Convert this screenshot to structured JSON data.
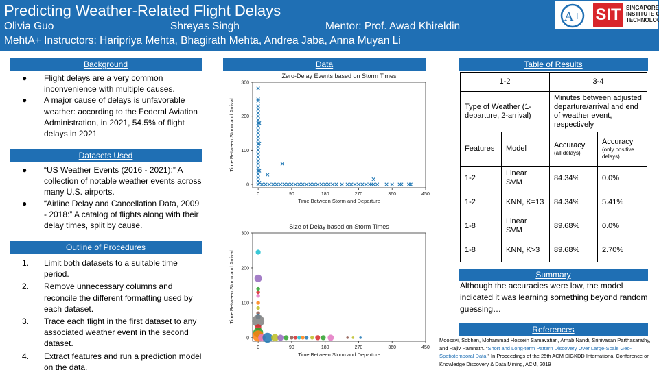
{
  "header": {
    "title": "Predicting Weather-Related Flight Delays",
    "authors": [
      "Olivia Guo",
      "Shreyas Singh"
    ],
    "mentor": "Mentor: Prof. Awad Khireldin",
    "instructors": "MehtA+ Instructors: Haripriya Mehta, Bhagirath Mehta, Andrea Jaba, Anna Muyan Li",
    "logos": {
      "mehta": "A+",
      "sit_mark": "SIT",
      "sit_lines": [
        "SINGAPORE",
        "INSTITUTE OF",
        "TECHNOLOGY"
      ]
    },
    "colors": {
      "banner": "#1f6fb4",
      "sit_red": "#d9262b"
    }
  },
  "background": {
    "heading": "Background",
    "bullets": [
      "Flight delays are a very common inconvenience with multiple causes.",
      "A major cause of delays is unfavorable weather: according to the Federal Aviation Administration, in 2021, 54.5% of flight delays in 2021"
    ]
  },
  "datasets": {
    "heading": "Datasets Used",
    "bullets": [
      "“US Weather Events (2016 - 2021):” A collection of notable weather events across many U.S. airports.",
      "“Airline Delay and Cancellation Data, 2009 - 2018:” A catalog of flights along with their delay times, split by cause."
    ]
  },
  "procedures": {
    "heading": "Outline of Procedures",
    "steps": [
      {
        "num": "1.",
        "text": "Limit both datasets to a suitable time period."
      },
      {
        "num": "2.",
        "text": "Remove unnecessary columns and reconcile the different formatting used by each dataset."
      },
      {
        "num": "3.",
        "text": "Trace each flight in the first dataset to any associated weather event in the second dataset."
      },
      {
        "num": "4.",
        "text": "Extract features and run a prediction model on the data."
      }
    ]
  },
  "data_section": {
    "heading": "Data"
  },
  "chart_data": [
    {
      "type": "scatter",
      "title": "Zero-Delay Events based on Storm Times",
      "xlabel": "Time Between Storm and Departure",
      "ylabel": "Time Between Storm and Arrival",
      "xlim": [
        -15,
        450
      ],
      "ylim": [
        -10,
        300
      ],
      "xticks": [
        0,
        90,
        180,
        270,
        360,
        450
      ],
      "yticks": [
        0,
        100,
        200,
        300
      ],
      "marker": "x",
      "color": "#1f77b4",
      "series": [
        {
          "points": [
            [
              0,
              0
            ],
            [
              0,
              10
            ],
            [
              0,
              20
            ],
            [
              0,
              30
            ],
            [
              0,
              40
            ],
            [
              0,
              50
            ],
            [
              0,
              60
            ],
            [
              0,
              70
            ],
            [
              0,
              80
            ],
            [
              0,
              90
            ],
            [
              0,
              100
            ],
            [
              0,
              110
            ],
            [
              0,
              120
            ],
            [
              0,
              130
            ],
            [
              0,
              140
            ],
            [
              0,
              150
            ],
            [
              0,
              160
            ],
            [
              0,
              170
            ],
            [
              0,
              180
            ],
            [
              0,
              190
            ],
            [
              0,
              200
            ],
            [
              0,
              210
            ],
            [
              0,
              220
            ],
            [
              0,
              230
            ],
            [
              0,
              245
            ],
            [
              0,
              250
            ],
            [
              0,
              282
            ],
            [
              3,
              5
            ],
            [
              3,
              40
            ],
            [
              3,
              120
            ],
            [
              3,
              180
            ],
            [
              10,
              0
            ],
            [
              20,
              0
            ],
            [
              30,
              0
            ],
            [
              40,
              0
            ],
            [
              50,
              0
            ],
            [
              60,
              0
            ],
            [
              70,
              0
            ],
            [
              80,
              0
            ],
            [
              90,
              0
            ],
            [
              100,
              0
            ],
            [
              110,
              0
            ],
            [
              120,
              0
            ],
            [
              130,
              0
            ],
            [
              140,
              0
            ],
            [
              150,
              0
            ],
            [
              160,
              0
            ],
            [
              170,
              0
            ],
            [
              180,
              0
            ],
            [
              190,
              0
            ],
            [
              200,
              0
            ],
            [
              210,
              0
            ],
            [
              225,
              0
            ],
            [
              240,
              0
            ],
            [
              250,
              0
            ],
            [
              260,
              0
            ],
            [
              270,
              0
            ],
            [
              280,
              0
            ],
            [
              290,
              0
            ],
            [
              300,
              0
            ],
            [
              305,
              0
            ],
            [
              310,
              0
            ],
            [
              320,
              0
            ],
            [
              345,
              0
            ],
            [
              360,
              0
            ],
            [
              380,
              0
            ],
            [
              385,
              0
            ],
            [
              405,
              0
            ],
            [
              410,
              0
            ],
            [
              25,
              28
            ],
            [
              65,
              60
            ],
            [
              310,
              15
            ]
          ]
        }
      ]
    },
    {
      "type": "scatter",
      "title": "Size of Delay based on Storm Times",
      "xlabel": "Time Between Storm and Departure",
      "ylabel": "Time Between Storm and Arrival",
      "xlim": [
        -15,
        450
      ],
      "ylim": [
        -10,
        300
      ],
      "xticks": [
        0,
        90,
        180,
        270,
        360,
        450
      ],
      "yticks": [
        0,
        100,
        200,
        300
      ],
      "marker": "circle",
      "points": [
        {
          "x": 0,
          "y": 245,
          "size": 4,
          "color": "#17becf"
        },
        {
          "x": 0,
          "y": 170,
          "size": 6,
          "color": "#9467bd"
        },
        {
          "x": 0,
          "y": 140,
          "size": 3,
          "color": "#2ca02c"
        },
        {
          "x": 0,
          "y": 130,
          "size": 3,
          "color": "#d62728"
        },
        {
          "x": 0,
          "y": 120,
          "size": 3,
          "color": "#e377c2"
        },
        {
          "x": 0,
          "y": 100,
          "size": 3,
          "color": "#ff7f0e"
        },
        {
          "x": 0,
          "y": 85,
          "size": 3,
          "color": "#bcbd22"
        },
        {
          "x": 0,
          "y": 70,
          "size": 3,
          "color": "#8c564b"
        },
        {
          "x": 0,
          "y": 60,
          "size": 4,
          "color": "#1f77b4"
        },
        {
          "x": 0,
          "y": 48,
          "size": 10,
          "color": "#7f7f7f"
        },
        {
          "x": 0,
          "y": 30,
          "size": 5,
          "color": "#d62728"
        },
        {
          "x": 0,
          "y": 15,
          "size": 8,
          "color": "#2ca02c"
        },
        {
          "x": 0,
          "y": 5,
          "size": 9,
          "color": "#ff7f0e"
        },
        {
          "x": 10,
          "y": 0,
          "size": 6,
          "color": "#e377c2"
        },
        {
          "x": 25,
          "y": 0,
          "size": 8,
          "color": "#1f77b4"
        },
        {
          "x": 45,
          "y": 0,
          "size": 6,
          "color": "#bcbd22"
        },
        {
          "x": 60,
          "y": 0,
          "size": 5,
          "color": "#9467bd"
        },
        {
          "x": 75,
          "y": 0,
          "size": 4,
          "color": "#2ca02c"
        },
        {
          "x": 90,
          "y": 0,
          "size": 3,
          "color": "#8c564b"
        },
        {
          "x": 100,
          "y": 0,
          "size": 3,
          "color": "#d62728"
        },
        {
          "x": 110,
          "y": 0,
          "size": 3,
          "color": "#17becf"
        },
        {
          "x": 120,
          "y": 0,
          "size": 3,
          "color": "#ff7f0e"
        },
        {
          "x": 130,
          "y": 0,
          "size": 3,
          "color": "#1f77b4"
        },
        {
          "x": 145,
          "y": 0,
          "size": 3,
          "color": "#bcbd22"
        },
        {
          "x": 160,
          "y": 0,
          "size": 4,
          "color": "#d62728"
        },
        {
          "x": 175,
          "y": 0,
          "size": 4,
          "color": "#2ca02c"
        },
        {
          "x": 195,
          "y": 0,
          "size": 5,
          "color": "#e377c2"
        },
        {
          "x": 240,
          "y": 0,
          "size": 2,
          "color": "#8c564b"
        },
        {
          "x": 255,
          "y": 0,
          "size": 2,
          "color": "#bcbd22"
        },
        {
          "x": 275,
          "y": 0,
          "size": 2,
          "color": "#1f77b4"
        }
      ]
    }
  ],
  "results": {
    "heading": "Table of Results",
    "rows": {
      "r1": [
        "1-2",
        "3-4"
      ],
      "r2": [
        "Type of Weather (1-departure, 2-arrival)",
        "Minutes between adjusted departure/arrival and end of weather event, respectively"
      ],
      "header": [
        "Features",
        "Model",
        "Accuracy",
        "(all delays)",
        "Accuracy",
        "(only positive delays)"
      ],
      "data": [
        [
          "1-2",
          "Linear SVM",
          "84.34%",
          "0.0%"
        ],
        [
          "1-2",
          "KNN, K=13",
          "84.34%",
          "5.41%"
        ],
        [
          "1-8",
          "Linear SVM",
          "89.68%",
          "0.0%"
        ],
        [
          "1-8",
          "KNN, K>3",
          "89.68%",
          "2.70%"
        ]
      ]
    }
  },
  "summary": {
    "heading": "Summary",
    "text": "Although the accuracies were low, the model indicated it was learning something beyond random guessing…"
  },
  "references": {
    "heading": "References",
    "before": "Moosavi, Sobhan, Mohammad Hossein Samavatian, Arnab Nandi, Srinivasan Parthasarathy, and Rajiv Ramnath. “",
    "link": "Short and Long-term Pattern Discovery Over Large-Scale Geo-Spatiotemporal Data",
    "after": ".” In Proceedings of the 25th ACM SIGKDD International Conference on Knowledge Discovery & Data Mining, ACM, 2019"
  },
  "bullet_glyph": "●"
}
